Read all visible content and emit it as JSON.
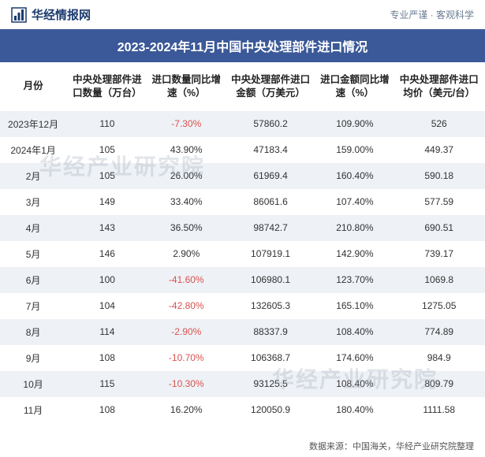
{
  "header": {
    "logo_text": "华经情报网",
    "tagline": "专业严谨 · 客观科学"
  },
  "title": "2023-2024年11月中国中央处理部件进口情况",
  "columns": {
    "month": "月份",
    "qty": "中央处理部件进口数量（万台）",
    "qty_yoy": "进口数量同比增速（%）",
    "amt": "中央处理部件进口金额（万美元）",
    "amt_yoy": "进口金额同比增速（%）",
    "price": "中央处理部件进口均价（美元/台）"
  },
  "rows": [
    {
      "month": "2023年12月",
      "qty": "110",
      "qty_yoy": "-7.30%",
      "qty_neg": true,
      "amt": "57860.2",
      "amt_yoy": "109.90%",
      "price": "526"
    },
    {
      "month": "2024年1月",
      "qty": "105",
      "qty_yoy": "43.90%",
      "qty_neg": false,
      "amt": "47183.4",
      "amt_yoy": "159.00%",
      "price": "449.37"
    },
    {
      "month": "2月",
      "qty": "105",
      "qty_yoy": "26.00%",
      "qty_neg": false,
      "amt": "61969.4",
      "amt_yoy": "160.40%",
      "price": "590.18"
    },
    {
      "month": "3月",
      "qty": "149",
      "qty_yoy": "33.40%",
      "qty_neg": false,
      "amt": "86061.6",
      "amt_yoy": "107.40%",
      "price": "577.59"
    },
    {
      "month": "4月",
      "qty": "143",
      "qty_yoy": "36.50%",
      "qty_neg": false,
      "amt": "98742.7",
      "amt_yoy": "210.80%",
      "price": "690.51"
    },
    {
      "month": "5月",
      "qty": "146",
      "qty_yoy": "2.90%",
      "qty_neg": false,
      "amt": "107919.1",
      "amt_yoy": "142.90%",
      "price": "739.17"
    },
    {
      "month": "6月",
      "qty": "100",
      "qty_yoy": "-41.60%",
      "qty_neg": true,
      "amt": "106980.1",
      "amt_yoy": "123.70%",
      "price": "1069.8"
    },
    {
      "month": "7月",
      "qty": "104",
      "qty_yoy": "-42.80%",
      "qty_neg": true,
      "amt": "132605.3",
      "amt_yoy": "165.10%",
      "price": "1275.05"
    },
    {
      "month": "8月",
      "qty": "114",
      "qty_yoy": "-2.90%",
      "qty_neg": true,
      "amt": "88337.9",
      "amt_yoy": "108.40%",
      "price": "774.89"
    },
    {
      "month": "9月",
      "qty": "108",
      "qty_yoy": "-10.70%",
      "qty_neg": true,
      "amt": "106368.7",
      "amt_yoy": "174.60%",
      "price": "984.9"
    },
    {
      "month": "10月",
      "qty": "115",
      "qty_yoy": "-10.30%",
      "qty_neg": true,
      "amt": "93125.5",
      "amt_yoy": "108.40%",
      "price": "809.79"
    },
    {
      "month": "11月",
      "qty": "108",
      "qty_yoy": "16.20%",
      "qty_neg": false,
      "amt": "120050.9",
      "amt_yoy": "180.40%",
      "price": "1111.58"
    }
  ],
  "footer": {
    "source": "数据来源：中国海关，华经产业研究院整理"
  },
  "watermark": "华经产业研究院",
  "style": {
    "title_bg": "#3b5998",
    "title_fg": "#ffffff",
    "stripe_bg": "#eef1f6",
    "neg_color": "#d9534f",
    "text_color": "#333333",
    "header_text_color": "#1a3a6e",
    "tagline_color": "#6b7c93",
    "font_family": "Microsoft YaHei",
    "title_fontsize": 16,
    "header_fontsize": 12.5,
    "cell_fontsize": 12,
    "footer_fontsize": 11
  }
}
